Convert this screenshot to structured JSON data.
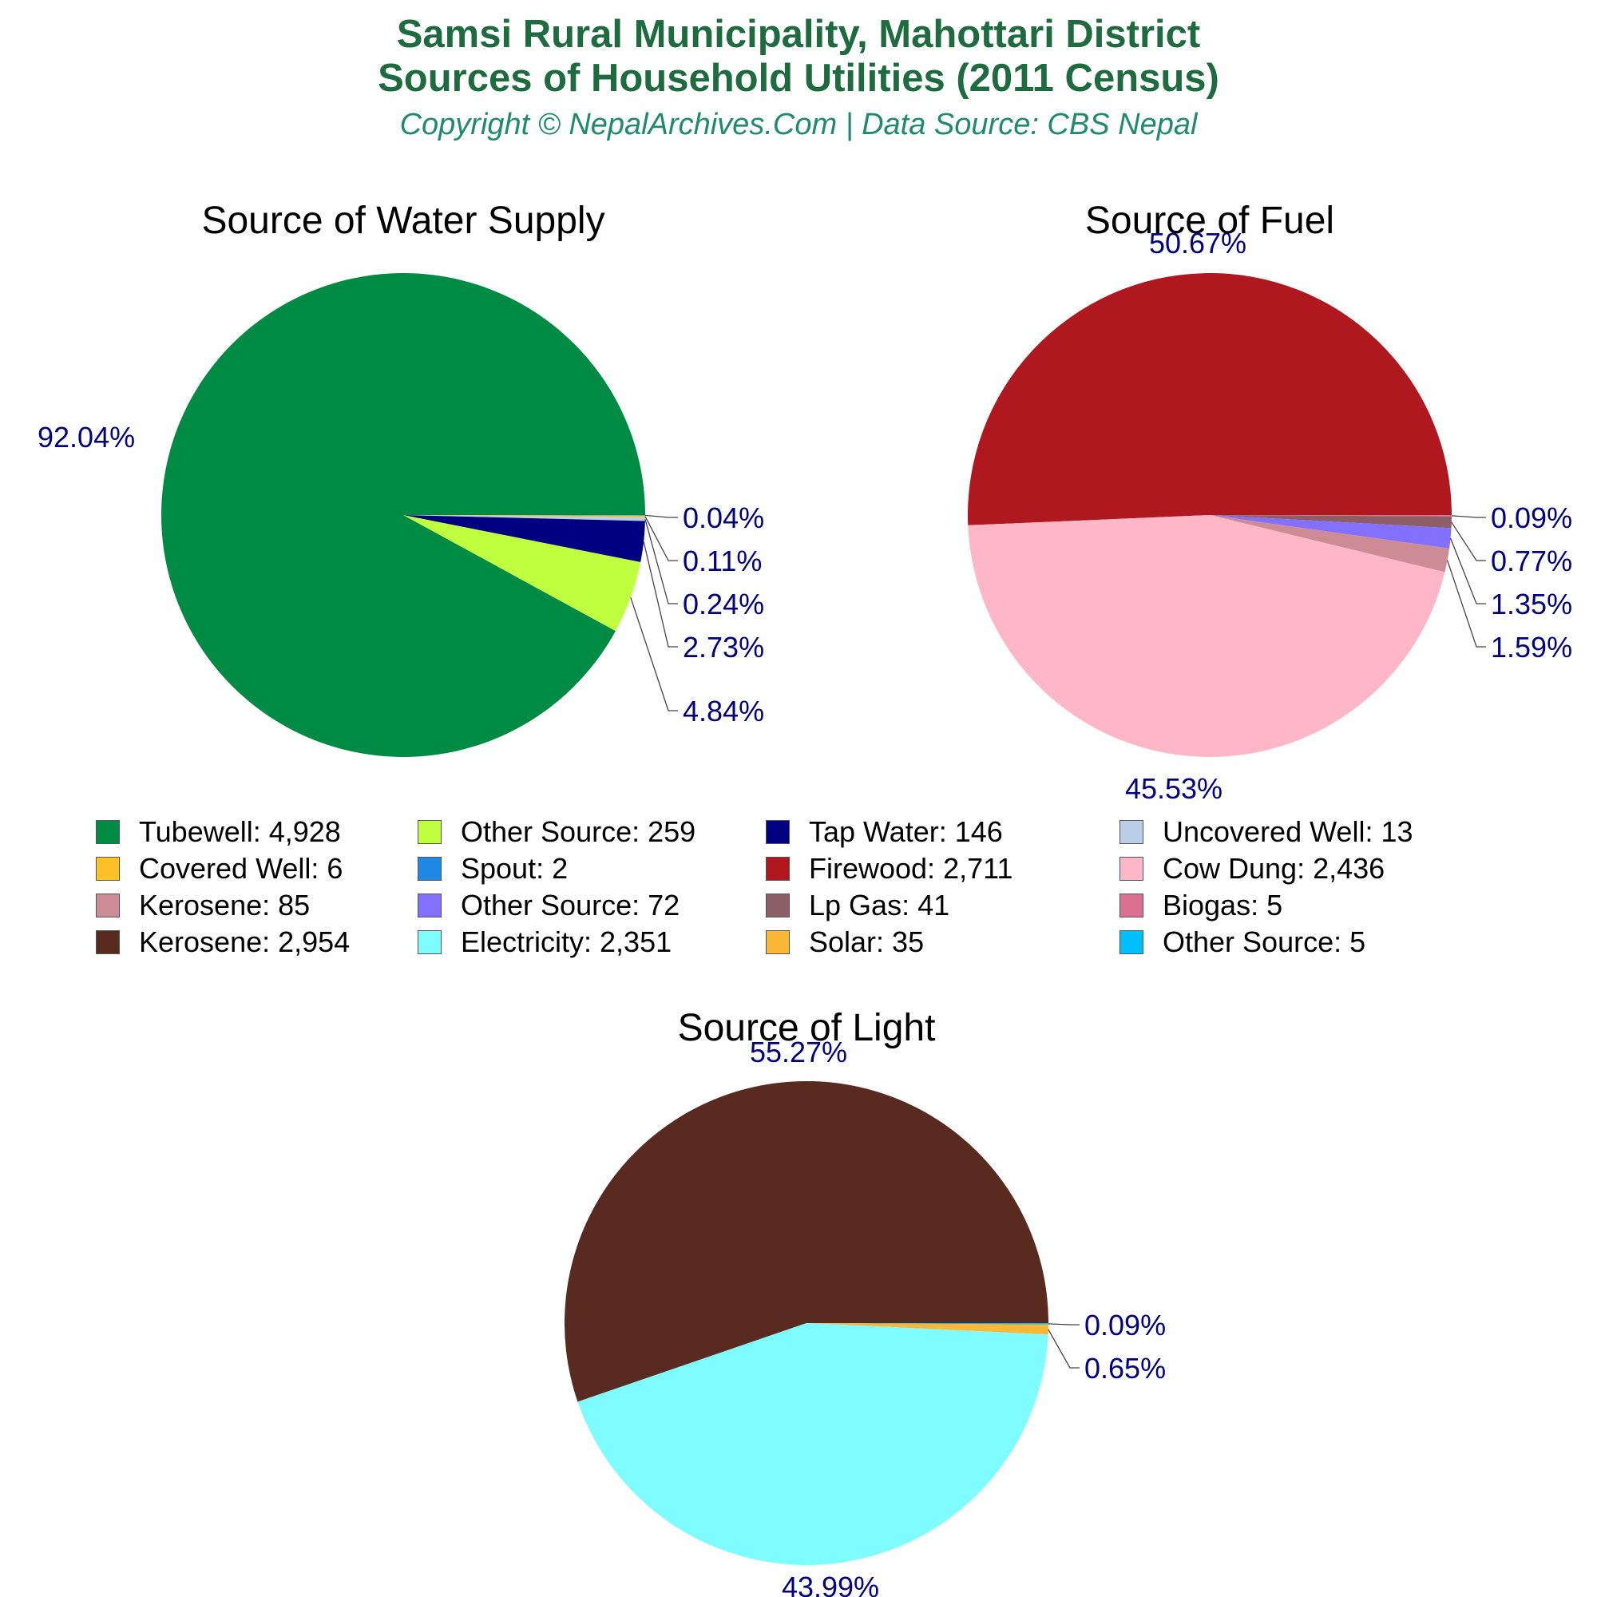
{
  "title_line1": "Samsi Rural Municipality, Mahottari District",
  "title_line2": "Sources of Household Utilities (2011 Census)",
  "subtitle": "Copyright © NepalArchives.Com | Data Source: CBS Nepal",
  "chart_data": [
    {
      "type": "pie",
      "title": "Source of Water Supply",
      "slices": [
        {
          "label": "Tubewell",
          "value": 4928,
          "percent": "92.04%",
          "color": "#008b45"
        },
        {
          "label": "Other Source",
          "value": 259,
          "percent": "4.84%",
          "color": "#bfff3f"
        },
        {
          "label": "Tap Water",
          "value": 146,
          "percent": "2.73%",
          "color": "#000080"
        },
        {
          "label": "Uncovered Well",
          "value": 13,
          "percent": "0.24%",
          "color": "#b9cfe8"
        },
        {
          "label": "Covered Well",
          "value": 6,
          "percent": "0.11%",
          "color": "#ffc125"
        },
        {
          "label": "Spout",
          "value": 2,
          "percent": "0.04%",
          "color": "#1e88e5"
        }
      ]
    },
    {
      "type": "pie",
      "title": "Source of Fuel",
      "slices": [
        {
          "label": "Firewood",
          "value": 2711,
          "percent": "50.67%",
          "color": "#b01820"
        },
        {
          "label": "Cow Dung",
          "value": 2436,
          "percent": "45.53%",
          "color": "#ffb6c6"
        },
        {
          "label": "Kerosene",
          "value": 85,
          "percent": "1.59%",
          "color": "#cd8c95"
        },
        {
          "label": "Other Source",
          "value": 72,
          "percent": "1.35%",
          "color": "#8470ff"
        },
        {
          "label": "Lp Gas",
          "value": 41,
          "percent": "0.77%",
          "color": "#8b5f65"
        },
        {
          "label": "Biogas",
          "value": 5,
          "percent": "0.09%",
          "color": "#db7093"
        }
      ]
    },
    {
      "type": "pie",
      "title": "Source of Light",
      "slices": [
        {
          "label": "Kerosene",
          "value": 2954,
          "percent": "55.27%",
          "color": "#582a20"
        },
        {
          "label": "Electricity",
          "value": 2351,
          "percent": "43.99%",
          "color": "#7ffcff"
        },
        {
          "label": "Solar",
          "value": 35,
          "percent": "0.65%",
          "color": "#f8b737"
        },
        {
          "label": "Other Source",
          "value": 5,
          "percent": "0.09%",
          "color": "#00bfff"
        }
      ]
    }
  ],
  "legend": [
    {
      "text": "Tubewell: 4,928",
      "color": "#008b45"
    },
    {
      "text": "Other Source: 259",
      "color": "#bfff3f"
    },
    {
      "text": "Tap Water: 146",
      "color": "#000080"
    },
    {
      "text": "Uncovered Well: 13",
      "color": "#b9cfe8"
    },
    {
      "text": "Covered Well: 6",
      "color": "#ffc125"
    },
    {
      "text": "Spout: 2",
      "color": "#1e88e5"
    },
    {
      "text": "Firewood: 2,711",
      "color": "#b01820"
    },
    {
      "text": "Cow Dung: 2,436",
      "color": "#ffb6c6"
    },
    {
      "text": "Kerosene: 85",
      "color": "#cd8c95"
    },
    {
      "text": "Other Source: 72",
      "color": "#8470ff"
    },
    {
      "text": "Lp Gas: 41",
      "color": "#8b5f65"
    },
    {
      "text": "Biogas: 5",
      "color": "#db7093"
    },
    {
      "text": "Kerosene: 2,954",
      "color": "#582a20"
    },
    {
      "text": "Electricity: 2,351",
      "color": "#7ffcff"
    },
    {
      "text": "Solar: 35",
      "color": "#f8b737"
    },
    {
      "text": "Other Source: 5",
      "color": "#00bfff"
    }
  ],
  "colors": {
    "title": "#1e6b40",
    "subtitle": "#1f8a6d",
    "percent_label": "#000080"
  }
}
